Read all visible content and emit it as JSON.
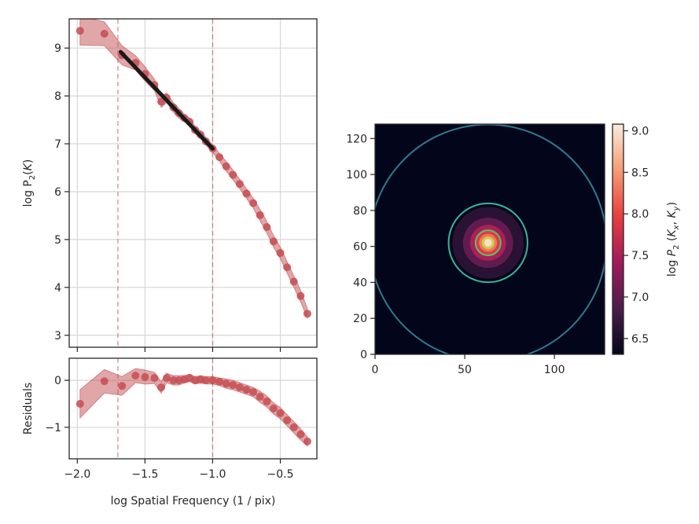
{
  "chart_data": [
    {
      "type": "scatter",
      "ylabel": [
        {
          "t": "log P"
        },
        {
          "t": "2",
          "sub": true
        },
        {
          "t": "("
        },
        {
          "t": "K",
          "italic": true
        },
        {
          "t": ")"
        }
      ],
      "x": [
        -1.98,
        -1.8,
        -1.67,
        -1.57,
        -1.5,
        -1.43,
        -1.38,
        -1.34,
        -1.29,
        -1.25,
        -1.21,
        -1.17,
        -1.13,
        -1.09,
        -1.05,
        -1.0,
        -0.95,
        -0.9,
        -0.85,
        -0.8,
        -0.75,
        -0.7,
        -0.65,
        -0.6,
        -0.55,
        -0.5,
        -0.45,
        -0.4,
        -0.35,
        -0.3
      ],
      "values": [
        9.36,
        9.3,
        8.85,
        8.69,
        8.46,
        8.23,
        7.88,
        7.96,
        7.76,
        7.64,
        7.54,
        7.46,
        7.29,
        7.19,
        7.05,
        6.9,
        6.72,
        6.53,
        6.35,
        6.16,
        5.96,
        5.76,
        5.51,
        5.26,
        4.96,
        4.72,
        4.42,
        4.12,
        3.82,
        3.45
      ],
      "errors": [
        0.3,
        0.25,
        0.2,
        0.15,
        0.15,
        0.12,
        0.12,
        0.1,
        0.1,
        0.1,
        0.08,
        0.08,
        0.08,
        0.08,
        0.08,
        0.08,
        0.08,
        0.1,
        0.1,
        0.1,
        0.1,
        0.1,
        0.12,
        0.12,
        0.12,
        0.12,
        0.12,
        0.12,
        0.12,
        0.1
      ],
      "color": "#c44e52",
      "fit": {
        "x": [
          -1.68,
          -1.0
        ],
        "y": [
          8.92,
          6.9
        ],
        "color": "#1a1a1a"
      },
      "vlines": [
        -1.7,
        -1.0
      ],
      "xlim": [
        -2.06,
        -0.23
      ],
      "ylim": [
        2.75,
        9.61
      ],
      "xticks": [
        -2,
        -1.5,
        -1,
        -0.5
      ],
      "yticks": [
        3,
        4,
        5,
        6,
        7,
        8,
        9
      ],
      "grid": true
    },
    {
      "type": "scatter",
      "xlabel": "log Spatial Frequency (1 / pix)",
      "ylabel": [
        {
          "t": "Residuals"
        }
      ],
      "x": [
        -1.98,
        -1.8,
        -1.67,
        -1.57,
        -1.5,
        -1.43,
        -1.38,
        -1.34,
        -1.29,
        -1.25,
        -1.21,
        -1.17,
        -1.13,
        -1.09,
        -1.05,
        -1.0,
        -0.95,
        -0.9,
        -0.85,
        -0.8,
        -0.75,
        -0.7,
        -0.65,
        -0.6,
        -0.55,
        -0.5,
        -0.45,
        -0.4,
        -0.35,
        -0.3
      ],
      "values": [
        -0.5,
        -0.02,
        -0.12,
        0.1,
        0.07,
        0.05,
        -0.15,
        0.05,
        0.0,
        0.0,
        0.02,
        0.05,
        0.0,
        0.02,
        0.0,
        0.0,
        -0.03,
        -0.07,
        -0.1,
        -0.15,
        -0.2,
        -0.25,
        -0.35,
        -0.45,
        -0.6,
        -0.7,
        -0.85,
        -1.0,
        -1.15,
        -1.3
      ],
      "errors": [
        0.3,
        0.25,
        0.2,
        0.15,
        0.15,
        0.12,
        0.12,
        0.1,
        0.1,
        0.1,
        0.08,
        0.08,
        0.08,
        0.08,
        0.08,
        0.08,
        0.08,
        0.1,
        0.1,
        0.1,
        0.1,
        0.1,
        0.12,
        0.12,
        0.12,
        0.12,
        0.12,
        0.12,
        0.12,
        0.1
      ],
      "color": "#c44e52",
      "vlines": [
        -1.7,
        -1.0
      ],
      "xlim": [
        -2.06,
        -0.23
      ],
      "ylim": [
        -1.67,
        0.47
      ],
      "xticks": [
        {
          "value": -2,
          "label": "−2.0"
        },
        {
          "value": -1.5,
          "label": "−1.5"
        },
        {
          "value": -1,
          "label": "−1.0"
        },
        {
          "value": -0.5,
          "label": "−0.5"
        }
      ],
      "yticks": [
        {
          "value": -1,
          "label": "−1"
        },
        0
      ],
      "grid": true
    },
    {
      "type": "heatmap",
      "xlim": [
        0,
        128
      ],
      "ylim": [
        0,
        128
      ],
      "xticks": [
        0,
        50,
        100
      ],
      "yticks": [
        0,
        20,
        40,
        60,
        80,
        100,
        120
      ],
      "center": [
        63,
        62
      ],
      "rings": {
        "radii": [
          20,
          14,
          10,
          7,
          5,
          3.5,
          2
        ],
        "values": [
          6.6,
          7.0,
          7.5,
          7.9,
          8.3,
          8.7,
          9.0
        ]
      },
      "contours": {
        "radii": [
          66,
          22,
          7,
          3
        ],
        "colors": [
          "#2d7b8f",
          "#35b89a",
          "#52c569",
          "#b5de2b"
        ]
      },
      "colormap": [
        "#03051a",
        "#4c1d4b",
        "#a11a5b",
        "#e83f3f",
        "#f69c73",
        "#faebdd"
      ],
      "clim": [
        6.31,
        9.08
      ],
      "cticks": [
        6.5,
        {
          "value": 7,
          "label": "7.0"
        },
        7.5,
        {
          "value": 8,
          "label": "8.0"
        },
        8.5,
        {
          "value": 9,
          "label": "9.0"
        }
      ],
      "clabel": [
        {
          "t": "log "
        },
        {
          "t": "P",
          "italic": true
        },
        {
          "t": "2",
          "sub": true
        },
        {
          "t": " ("
        },
        {
          "t": "K",
          "italic": true
        },
        {
          "t": "x",
          "sub": true,
          "italic": true
        },
        {
          "t": ", "
        },
        {
          "t": "K",
          "italic": true
        },
        {
          "t": "y",
          "sub": true,
          "italic": true
        },
        {
          "t": ")"
        }
      ]
    }
  ]
}
